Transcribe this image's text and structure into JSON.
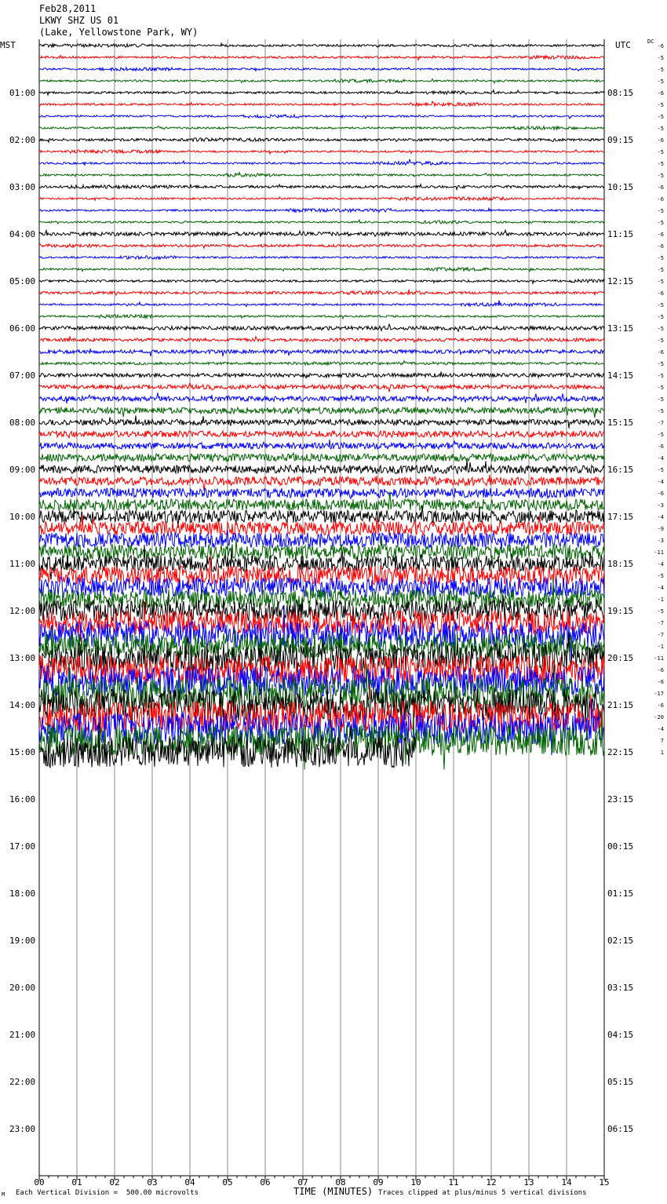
{
  "header": {
    "date": "Feb28,2011",
    "station": "LKWY SHZ US 01",
    "location": "(Lake, Yellowstone Park, WY)"
  },
  "footer": {
    "mark": "M",
    "scale_note": "Each Vertical Division =  500.00 microvolts",
    "xaxis_title": "TIME (MINUTES)",
    "clip_note": "Traces clipped at plus/minus 5 vertical divisions"
  },
  "chart_data": {
    "type": "line",
    "title": "",
    "xlabel": "TIME (MINUTES)",
    "xlim": [
      0,
      15
    ],
    "x_ticks": [
      "00",
      "01",
      "02",
      "03",
      "04",
      "05",
      "06",
      "07",
      "08",
      "09",
      "10",
      "11",
      "12",
      "13",
      "14",
      "15"
    ],
    "left_axis_label": "MST",
    "right_axis_label": "UTC",
    "dc_label": "DC",
    "mst_hours": [
      "",
      "01:00",
      "02:00",
      "03:00",
      "04:00",
      "05:00",
      "06:00",
      "07:00",
      "08:00",
      "09:00",
      "10:00",
      "11:00",
      "12:00",
      "13:00",
      "14:00",
      "15:00",
      "16:00",
      "17:00",
      "18:00",
      "19:00",
      "20:00",
      "21:00",
      "22:00",
      "23:00"
    ],
    "utc_hours": [
      "",
      "08:15",
      "09:15",
      "10:15",
      "11:15",
      "12:15",
      "13:15",
      "14:15",
      "15:15",
      "16:15",
      "17:15",
      "18:15",
      "19:15",
      "20:15",
      "21:15",
      "22:15",
      "23:15",
      "00:15",
      "01:15",
      "02:15",
      "03:15",
      "04:15",
      "05:15",
      "06:15"
    ],
    "trace_colors": [
      "#000000",
      "#ff0000",
      "#0000ff",
      "#006400"
    ],
    "traces_total_drawn": 61,
    "last_trace_end_minute": 10,
    "dc_offsets": [
      "-6",
      "-5",
      "-5",
      "-5",
      "-6",
      "-5",
      "-5",
      "-5",
      "-6",
      "-5",
      "-5",
      "-5",
      "-6",
      "-6",
      "-5",
      "-5",
      "-6",
      "-6",
      "-5",
      "-5",
      "-5",
      "-6",
      "-5",
      "-5",
      "-5",
      "-5",
      "-6",
      "-5",
      "-5",
      "-5",
      "-5",
      "-5",
      "-7",
      "-5",
      "-6",
      "-4",
      "-5",
      "-4",
      "-6",
      "-3",
      "-4",
      "-9",
      "-3",
      "-11",
      "-4",
      "-5",
      "-4",
      "-1",
      "-5",
      "-7",
      "-7",
      "-1",
      "-11",
      "-6",
      "-6",
      "-17",
      "-6",
      "-20",
      "-4",
      "7",
      "1"
    ],
    "noise_amplitude_divisions": [
      0.35,
      0.35,
      0.3,
      0.3,
      0.35,
      0.3,
      0.3,
      0.3,
      0.4,
      0.3,
      0.3,
      0.3,
      0.4,
      0.3,
      0.3,
      0.3,
      0.6,
      0.4,
      0.3,
      0.3,
      0.35,
      0.4,
      0.3,
      0.3,
      0.6,
      0.5,
      0.6,
      0.4,
      0.6,
      0.7,
      0.8,
      1.0,
      0.9,
      1.0,
      1.0,
      1.2,
      1.3,
      1.4,
      1.5,
      1.8,
      2.0,
      2.2,
      2.4,
      2.4,
      2.6,
      3.0,
      3.2,
      3.0,
      3.4,
      3.8,
      4.2,
      4.0,
      4.6,
      4.6,
      4.8,
      5.0,
      5.0,
      5.0,
      5.0,
      5.0,
      5.0
    ],
    "units": "500.00 microvolts per vertical division"
  }
}
